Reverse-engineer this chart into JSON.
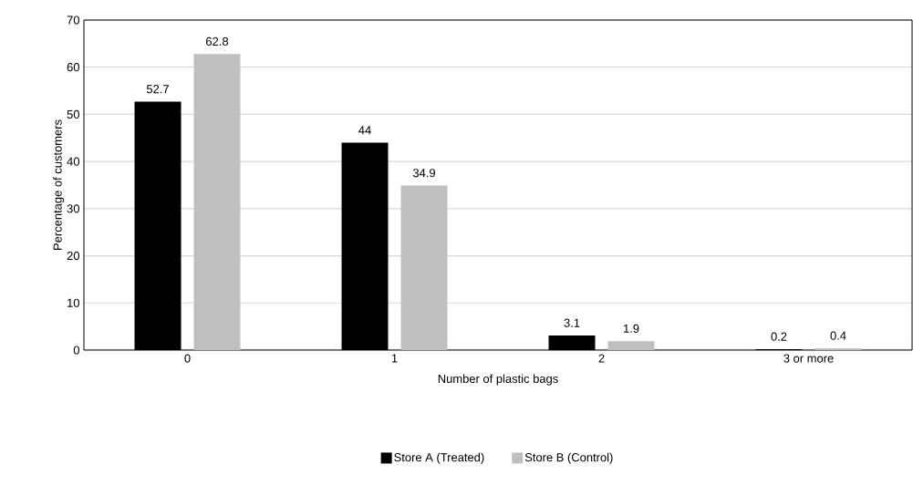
{
  "chart_data": {
    "type": "bar",
    "xlabel": "Number of plastic bags",
    "ylabel": "Percentage of customers",
    "categories": [
      "0",
      "1",
      "2",
      "3 or more"
    ],
    "series": [
      {
        "name": "Store A (Treated)",
        "color": "#000000",
        "values": [
          52.7,
          44,
          3.1,
          0.2
        ]
      },
      {
        "name": "Store B (Control)",
        "color": "#bfbfbf",
        "values": [
          62.8,
          34.9,
          1.9,
          0.4
        ]
      }
    ],
    "ylim": [
      0,
      70
    ],
    "yticks": [
      0,
      10,
      20,
      30,
      40,
      50,
      60,
      70
    ],
    "grid": "y",
    "legend": "bottom",
    "data_labels": true
  }
}
